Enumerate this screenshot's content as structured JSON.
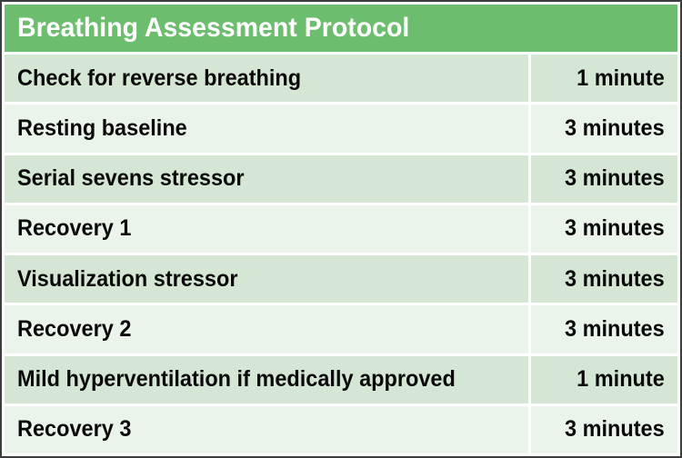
{
  "table": {
    "title": "Breathing Assessment Protocol",
    "rows": [
      {
        "activity": "Check for reverse breathing",
        "duration": "1 minute"
      },
      {
        "activity": "Resting baseline",
        "duration": "3 minutes"
      },
      {
        "activity": "Serial sevens stressor",
        "duration": "3 minutes"
      },
      {
        "activity": "Recovery 1",
        "duration": "3 minutes"
      },
      {
        "activity": "Visualization stressor",
        "duration": "3 minutes"
      },
      {
        "activity": "Recovery 2",
        "duration": "3 minutes"
      },
      {
        "activity": "Mild hyperventilation if medically approved",
        "duration": "1 minute"
      },
      {
        "activity": "Recovery 3",
        "duration": "3 minutes"
      }
    ],
    "colors": {
      "header_bg": "#6cbe6e",
      "header_text": "#ffffff",
      "row_odd_bg": "#d5e6d4",
      "row_even_bg": "#ebf4ea",
      "row_text": "#0a0a0a",
      "border": "#3d3d3d",
      "gap": "#ffffff"
    }
  }
}
